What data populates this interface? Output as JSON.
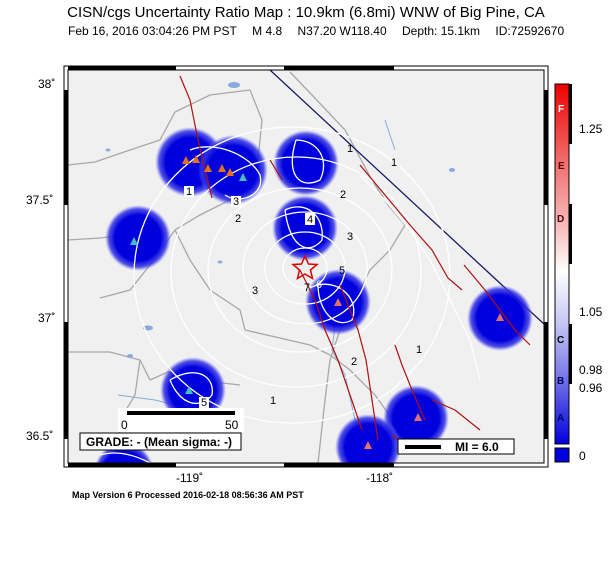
{
  "header": {
    "title": "CISN/cgs Uncertainty Ratio Map : 10.9km (6.8mi) WNW of Big Pine, CA",
    "date": "Feb 16, 2016 03:04:26 PM PST",
    "magnitude": "M 4.8",
    "location": "N37.20 W118.40",
    "depth": "Depth: 15.1km",
    "event_id": "ID:72592670"
  },
  "axes": {
    "lat_ticks": [
      "38˚",
      "37.5˚",
      "37˚",
      "36.5˚"
    ],
    "lon_ticks": [
      "-119˚",
      "-118˚"
    ]
  },
  "scalebar": {
    "min": "0",
    "max": "50"
  },
  "grade": "GRADE: - (Mean sigma: -)",
  "mi_legend": "MI = 6.0",
  "colorbar": {
    "letters": [
      "F",
      "E",
      "D",
      "C",
      "B",
      "A"
    ],
    "values": [
      "1.25",
      "1.05",
      "0.98",
      "0.96",
      "0"
    ],
    "colors": {
      "high": "#ee0000",
      "mid": "#ffffff",
      "low": "#0000dd"
    }
  },
  "contours": [
    "1",
    "1",
    "1",
    "1",
    "1",
    "2",
    "2",
    "2",
    "3",
    "3",
    "3",
    "4",
    "5",
    "5",
    "6",
    "7"
  ],
  "footer": "Map Version 6 Processed 2016-02-18 08:56:36 AM PST"
}
